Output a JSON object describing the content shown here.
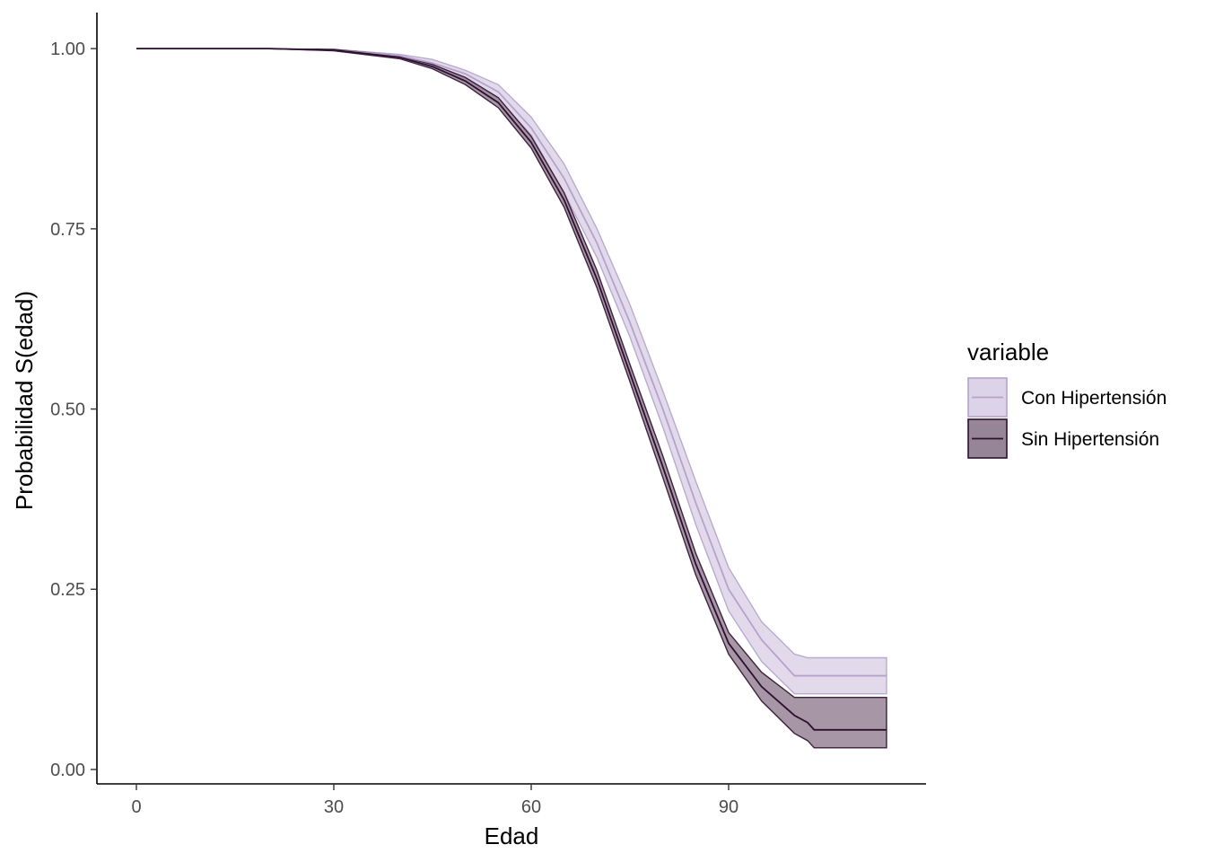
{
  "chart_data": {
    "type": "area",
    "xlabel": "Edad",
    "ylabel": "Probabilidad S(edad)",
    "xlim": [
      -6,
      120
    ],
    "ylim": [
      -0.02,
      1.05
    ],
    "x_ticks": [
      0,
      30,
      60,
      90
    ],
    "y_ticks": [
      0.0,
      0.25,
      0.5,
      0.75,
      1.0
    ],
    "y_tick_labels": [
      "0.00",
      "0.25",
      "0.50",
      "0.75",
      "1.00"
    ],
    "grid": false,
    "legend": {
      "title": "variable",
      "position": "right"
    },
    "series": [
      {
        "name": "Con Hipertensión",
        "line_color": "#b3a3cc",
        "fill_color": "#ddd3e8",
        "x": [
          0,
          20,
          30,
          40,
          45,
          50,
          55,
          60,
          65,
          70,
          75,
          80,
          85,
          90,
          95,
          100,
          102,
          103,
          114
        ],
        "y": [
          1.0,
          1.0,
          0.998,
          0.99,
          0.98,
          0.965,
          0.94,
          0.89,
          0.82,
          0.73,
          0.62,
          0.5,
          0.37,
          0.25,
          0.18,
          0.13,
          0.13,
          0.13,
          0.13
        ],
        "lower": [
          1.0,
          1.0,
          0.997,
          0.988,
          0.975,
          0.958,
          0.93,
          0.88,
          0.8,
          0.71,
          0.6,
          0.475,
          0.34,
          0.22,
          0.15,
          0.105,
          0.105,
          0.105,
          0.105
        ],
        "upper": [
          1.0,
          1.0,
          0.999,
          0.992,
          0.985,
          0.97,
          0.95,
          0.905,
          0.84,
          0.75,
          0.645,
          0.525,
          0.4,
          0.28,
          0.205,
          0.16,
          0.155,
          0.155,
          0.155
        ]
      },
      {
        "name": "Sin Hipertensión",
        "line_color": "#2d0f2f",
        "fill_color": "#968497",
        "x": [
          0,
          20,
          30,
          40,
          45,
          50,
          55,
          60,
          65,
          70,
          75,
          80,
          85,
          90,
          95,
          100,
          102,
          103,
          114
        ],
        "y": [
          1.0,
          1.0,
          0.998,
          0.988,
          0.975,
          0.955,
          0.925,
          0.87,
          0.79,
          0.68,
          0.55,
          0.42,
          0.285,
          0.175,
          0.115,
          0.075,
          0.065,
          0.055,
          0.055
        ],
        "lower": [
          1.0,
          1.0,
          0.997,
          0.986,
          0.972,
          0.95,
          0.918,
          0.862,
          0.78,
          0.668,
          0.538,
          0.405,
          0.27,
          0.16,
          0.095,
          0.05,
          0.04,
          0.03,
          0.03
        ],
        "upper": [
          1.0,
          1.0,
          0.999,
          0.99,
          0.978,
          0.96,
          0.932,
          0.878,
          0.8,
          0.692,
          0.562,
          0.435,
          0.3,
          0.19,
          0.135,
          0.1,
          0.1,
          0.1,
          0.1
        ]
      }
    ]
  }
}
